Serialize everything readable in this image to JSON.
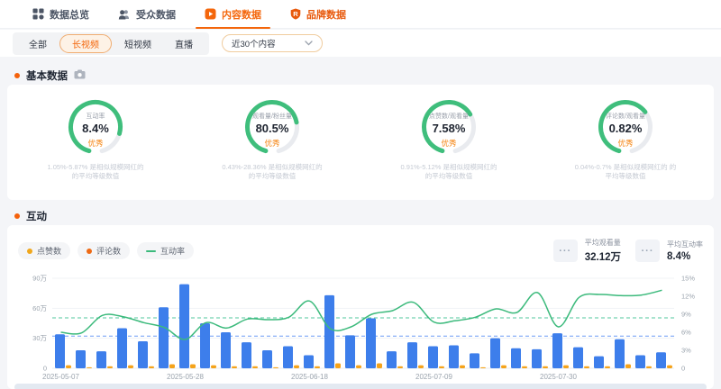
{
  "nav": {
    "tabs": [
      {
        "id": "overview",
        "label": "数据总览",
        "icon": "grid-icon",
        "active": false,
        "color": "#4c5565"
      },
      {
        "id": "audience",
        "label": "受众数据",
        "icon": "audience-icon",
        "active": false,
        "color": "#4c5565"
      },
      {
        "id": "content",
        "label": "内容数据",
        "icon": "play-icon",
        "active": true,
        "color": "#f4660b"
      },
      {
        "id": "brand",
        "label": "品牌数据",
        "icon": "shield-r-icon",
        "active": false,
        "color": "#e8590c"
      }
    ]
  },
  "filters": {
    "segments": [
      {
        "id": "all",
        "label": "全部",
        "selected": false
      },
      {
        "id": "long-video",
        "label": "长视频",
        "selected": true
      },
      {
        "id": "short-video",
        "label": "短视频",
        "selected": false
      },
      {
        "id": "live",
        "label": "直播",
        "selected": false
      }
    ],
    "range_select": {
      "value": "近30个内容"
    }
  },
  "sections": {
    "basic": "基本数据",
    "interaction": "互动"
  },
  "gauges": [
    {
      "label": "互动率",
      "value": "8.4%",
      "grade": "优秀",
      "arc_fill": 0.82,
      "desc_line1": "1.05%-5.87% 是相似规模网红的",
      "desc_line2": "的平均等级数值"
    },
    {
      "label": "观看量/粉丝量",
      "value": "80.5%",
      "grade": "优秀",
      "arc_fill": 0.74,
      "desc_line1": "0.43%-28.36% 是相似规模网红的",
      "desc_line2": "的平均等级数值"
    },
    {
      "label": "点赞数/观看量",
      "value": "7.58%",
      "grade": "优秀",
      "arc_fill": 0.68,
      "desc_line1": "0.91%-5.12% 是相似规模网红的",
      "desc_line2": "的平均等级数值"
    },
    {
      "label": "评论数/观看量",
      "value": "0.82%",
      "grade": "优秀",
      "arc_fill": 0.66,
      "desc_line1": "0.04%-0.7% 是相似规模网红的 的",
      "desc_line2": "平均等级数值"
    }
  ],
  "interaction_panel": {
    "legend": [
      {
        "label": "点赞数",
        "swatch": "dot",
        "color": "#f0a71c"
      },
      {
        "label": "评论数",
        "swatch": "dot",
        "color": "#ee6a14"
      },
      {
        "label": "互动率",
        "swatch": "line",
        "color": "#3cba7c"
      }
    ],
    "stats": [
      {
        "label": "平均观看量",
        "value": "32.12万",
        "swatch": "···"
      },
      {
        "label": "平均互动率",
        "value": "8.4%",
        "swatch": "···"
      }
    ]
  },
  "chart_data": {
    "type": "bar",
    "x_labels": [
      "2025-05-07",
      "2025-05-28",
      "2025-06-18",
      "2025-07-09",
      "2025-07-30"
    ],
    "x_label_indices": [
      0,
      6,
      12,
      18,
      24
    ],
    "series": [
      {
        "name": "点赞数",
        "type": "bar",
        "color": "#3d7eeb",
        "unit": "万",
        "values": [
          34,
          18,
          17,
          40,
          27,
          61,
          84,
          45,
          36,
          26,
          18,
          22,
          13,
          73,
          33,
          50,
          17,
          26,
          22,
          23,
          15,
          30,
          20,
          19,
          35,
          21,
          12,
          29,
          13,
          16
        ]
      },
      {
        "name": "评论数",
        "type": "bar",
        "color": "#f5a31a",
        "unit": "万",
        "values": [
          3,
          1,
          2,
          3,
          2,
          4,
          4,
          3,
          2,
          2,
          1,
          3,
          2,
          5,
          3,
          5,
          2,
          3,
          2,
          3,
          1,
          3,
          2,
          2,
          3,
          2,
          2,
          4,
          2,
          3
        ]
      },
      {
        "name": "互动率",
        "type": "line",
        "color": "#3cba7c",
        "unit": "%",
        "values": [
          6.0,
          5.9,
          8.8,
          8.6,
          7.6,
          6.8,
          4.8,
          7.6,
          6.7,
          8.2,
          8.1,
          8.5,
          11.2,
          6.6,
          6.9,
          9.0,
          9.6,
          11.0,
          7.7,
          7.9,
          8.5,
          9.9,
          9.3,
          12.6,
          6.9,
          11.8,
          12.3,
          12.1,
          12.2,
          13.0
        ]
      }
    ],
    "left_axis": {
      "ticks": [
        "0",
        "30万",
        "60万",
        "90万"
      ],
      "max": 90
    },
    "right_axis": {
      "ticks": [
        "0",
        "3%",
        "6%",
        "9%",
        "12%",
        "15%"
      ],
      "max": 15
    },
    "avg_lines": [
      {
        "label": "平均观看量",
        "value": 32.12,
        "axis": "left",
        "color": "#6e9bf5"
      },
      {
        "label": "平均互动率",
        "value": 8.4,
        "axis": "right",
        "color": "#52c79e"
      }
    ],
    "grid": true,
    "legend_position": "top-left"
  },
  "colors": {
    "accent": "#f4660b",
    "gauge_green": "#3fbe7c",
    "gauge_track": "#e9ebef",
    "grade_orange": "#f5820d",
    "bar_blue": "#3d7eeb",
    "bar_orange": "#f5a31a",
    "line_green": "#3cba7c",
    "dash_blue": "#6e9bf5",
    "dash_green": "#52c79e"
  }
}
